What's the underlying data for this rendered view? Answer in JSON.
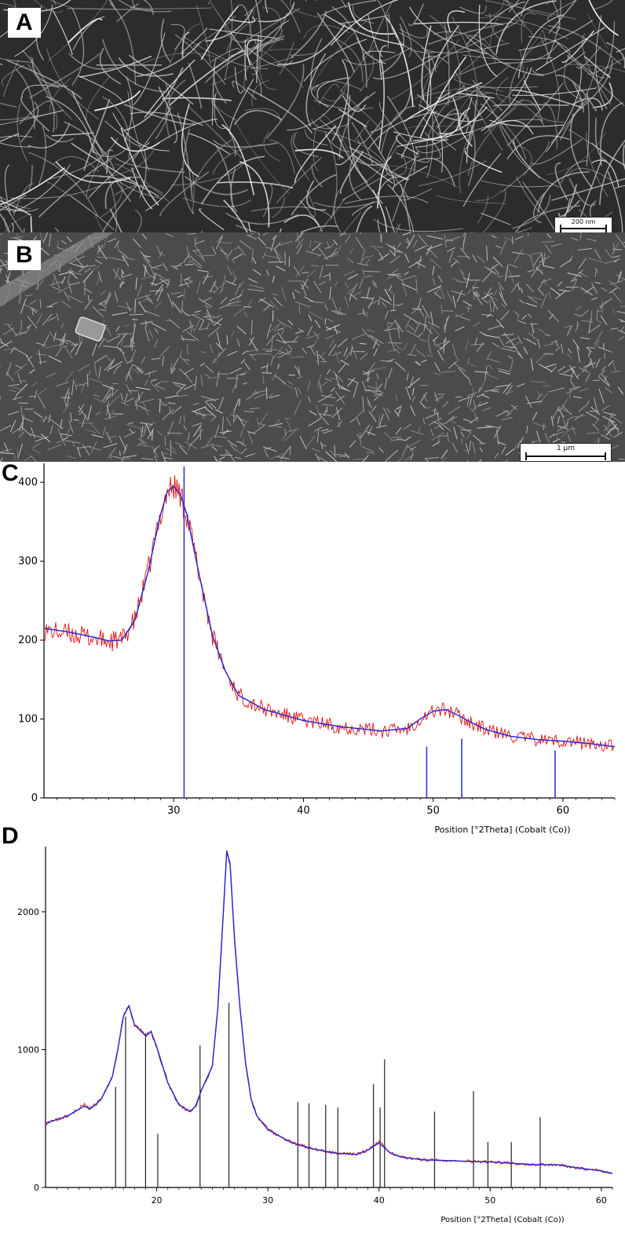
{
  "panels": {
    "a": {
      "label": "A",
      "scalebar": "200 nm"
    },
    "b": {
      "label": "B",
      "scalebar": "1 µm"
    },
    "c": {
      "label": "C"
    },
    "d": {
      "label": "D"
    }
  },
  "colors": {
    "measured": "#e01010",
    "fit": "#2a2ad0",
    "reference_c": "#3333dd",
    "reference_d": "#222222"
  },
  "chart_data": [
    {
      "type": "line",
      "panel": "C",
      "xlabel": "Position [°2Theta] (Cobalt (Co))",
      "ylabel": "",
      "xlim": [
        20,
        64
      ],
      "ylim": [
        0,
        420
      ],
      "xticks": [
        30,
        40,
        50,
        60
      ],
      "yticks": [
        0,
        100,
        200,
        300,
        400
      ],
      "series": [
        {
          "role": "measured",
          "x": [
            20,
            22,
            24,
            25,
            26,
            27,
            28,
            29,
            29.5,
            30,
            30.5,
            31,
            31.5,
            32,
            33,
            34,
            35,
            37,
            40,
            43,
            46,
            48,
            49,
            50,
            51,
            52,
            53,
            54,
            56,
            58,
            60,
            62,
            64
          ],
          "y": [
            212,
            208,
            202,
            198,
            200,
            225,
            285,
            360,
            388,
            395,
            385,
            360,
            320,
            280,
            205,
            160,
            130,
            112,
            98,
            90,
            85,
            88,
            100,
            110,
            112,
            104,
            95,
            87,
            78,
            74,
            72,
            69,
            65
          ]
        },
        {
          "role": "fit",
          "x": [
            20,
            22,
            24,
            25,
            26,
            27,
            28,
            29,
            29.5,
            30,
            30.5,
            31,
            31.5,
            32,
            33,
            34,
            35,
            37,
            40,
            43,
            46,
            48,
            49,
            50,
            51,
            52,
            53,
            54,
            56,
            58,
            60,
            62,
            64
          ],
          "y": [
            215,
            210,
            203,
            199,
            200,
            225,
            285,
            360,
            388,
            395,
            385,
            360,
            320,
            280,
            205,
            160,
            130,
            112,
            98,
            90,
            85,
            88,
            100,
            110,
            112,
            104,
            95,
            87,
            78,
            74,
            72,
            69,
            65
          ]
        }
      ],
      "reference_peaks": [
        {
          "x": 30.8,
          "y": 420
        },
        {
          "x": 49.5,
          "y": 65
        },
        {
          "x": 52.2,
          "y": 75
        },
        {
          "x": 59.4,
          "y": 60
        }
      ]
    },
    {
      "type": "line",
      "panel": "D",
      "xlabel": "Position [°2Theta] (Cobalt (Co))",
      "ylabel": "",
      "xlim": [
        10,
        61
      ],
      "ylim": [
        0,
        2450
      ],
      "xticks": [
        20,
        30,
        40,
        50,
        60
      ],
      "yticks": [
        0,
        1000,
        2000
      ],
      "series": [
        {
          "role": "measured",
          "x": [
            10,
            12,
            13.5,
            14,
            14.5,
            15,
            16,
            16.5,
            17,
            17.5,
            18,
            19,
            19.5,
            20,
            21,
            22,
            23,
            23.5,
            24,
            25,
            25.5,
            26,
            26.3,
            26.6,
            27,
            27.5,
            28,
            28.5,
            29,
            30,
            32,
            34,
            36,
            38,
            39,
            40,
            41,
            42,
            44,
            46,
            48,
            50,
            52,
            54,
            56,
            58,
            60,
            61
          ],
          "y": [
            460,
            520,
            600,
            570,
            600,
            640,
            800,
            1000,
            1250,
            1330,
            1180,
            1100,
            1130,
            1020,
            760,
            600,
            550,
            590,
            700,
            880,
            1300,
            2000,
            2450,
            2350,
            1800,
            1300,
            900,
            640,
            520,
            420,
            330,
            280,
            250,
            240,
            270,
            330,
            250,
            220,
            200,
            195,
            190,
            185,
            175,
            165,
            165,
            140,
            120,
            100
          ]
        },
        {
          "role": "fit",
          "x": [
            10,
            12,
            13.5,
            14,
            14.5,
            15,
            16,
            16.5,
            17,
            17.5,
            18,
            19,
            19.5,
            20,
            21,
            22,
            23,
            23.5,
            24,
            25,
            25.5,
            26,
            26.3,
            26.6,
            27,
            27.5,
            28,
            28.5,
            29,
            30,
            32,
            34,
            36,
            38,
            39,
            40,
            41,
            42,
            44,
            46,
            48,
            50,
            52,
            54,
            56,
            58,
            60,
            61
          ],
          "y": [
            465,
            520,
            590,
            570,
            600,
            640,
            800,
            1000,
            1240,
            1320,
            1180,
            1100,
            1130,
            1020,
            760,
            600,
            550,
            590,
            700,
            880,
            1300,
            2000,
            2440,
            2350,
            1800,
            1300,
            900,
            640,
            520,
            420,
            330,
            280,
            250,
            240,
            270,
            325,
            250,
            220,
            200,
            195,
            190,
            185,
            175,
            165,
            165,
            140,
            120,
            100
          ]
        }
      ],
      "reference_peaks": [
        {
          "x": 16.3,
          "y": 730
        },
        {
          "x": 17.2,
          "y": 1240
        },
        {
          "x": 19.0,
          "y": 1120
        },
        {
          "x": 20.1,
          "y": 390
        },
        {
          "x": 23.9,
          "y": 1030
        },
        {
          "x": 26.5,
          "y": 1340
        },
        {
          "x": 32.7,
          "y": 620
        },
        {
          "x": 33.7,
          "y": 610
        },
        {
          "x": 35.2,
          "y": 600
        },
        {
          "x": 36.3,
          "y": 580
        },
        {
          "x": 39.5,
          "y": 750
        },
        {
          "x": 40.1,
          "y": 580
        },
        {
          "x": 40.5,
          "y": 930
        },
        {
          "x": 45.0,
          "y": 550
        },
        {
          "x": 48.5,
          "y": 700
        },
        {
          "x": 49.8,
          "y": 330
        },
        {
          "x": 51.9,
          "y": 330
        },
        {
          "x": 54.5,
          "y": 510
        }
      ]
    }
  ]
}
